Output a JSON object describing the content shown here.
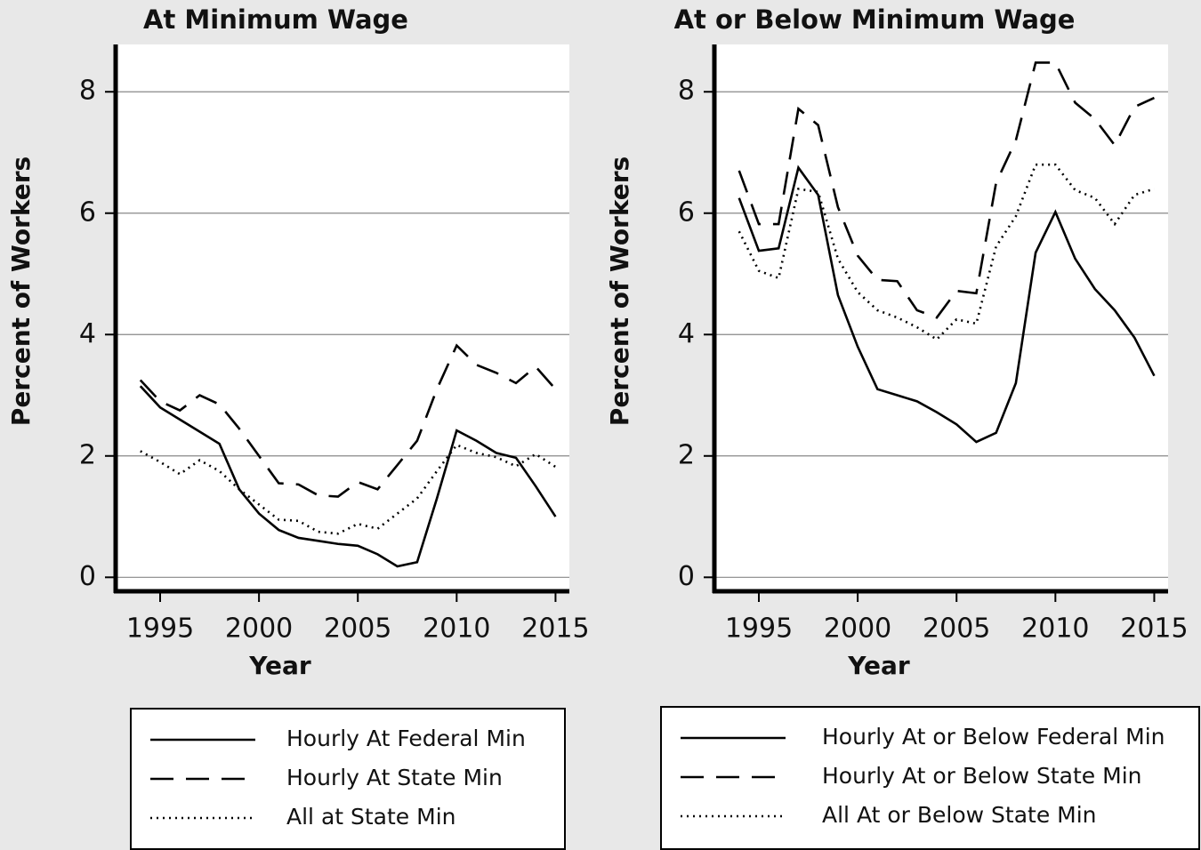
{
  "chart_data": [
    {
      "type": "line",
      "title": "At Minimum Wage",
      "x_label": "Year",
      "y_label": "Percent of Workers",
      "x": [
        1994,
        1995,
        1996,
        1997,
        1998,
        1999,
        2000,
        2001,
        2002,
        2003,
        2004,
        2005,
        2006,
        2007,
        2008,
        2009,
        2010,
        2011,
        2012,
        2013,
        2014,
        2015
      ],
      "xlim": [
        1992.75,
        2015.7
      ],
      "xticks": [
        1995,
        2000,
        2005,
        2010,
        2015
      ],
      "ylim": [
        -0.23,
        8.78
      ],
      "yticks": [
        0,
        2,
        4,
        6,
        8
      ],
      "grid": true,
      "series": [
        {
          "name": "Hourly At Federal Min",
          "color": "#000000",
          "dash": "solid",
          "values": [
            3.15,
            2.8,
            2.6,
            2.4,
            2.2,
            1.45,
            1.05,
            0.78,
            0.65,
            0.6,
            0.55,
            0.52,
            0.38,
            0.18,
            0.25,
            1.3,
            2.42,
            2.25,
            2.05,
            1.97,
            1.5,
            1.0
          ]
        },
        {
          "name": "Hourly At State Min",
          "color": "#000000",
          "dash": "dashed",
          "values": [
            3.25,
            2.9,
            2.75,
            3.0,
            2.85,
            2.45,
            2.0,
            1.55,
            1.53,
            1.35,
            1.33,
            1.57,
            1.45,
            1.85,
            2.25,
            3.1,
            3.82,
            3.5,
            3.37,
            3.2,
            3.47,
            3.1
          ]
        },
        {
          "name": "All at State Min",
          "color": "#000000",
          "dash": "dotted",
          "values": [
            2.08,
            1.9,
            1.7,
            1.93,
            1.75,
            1.45,
            1.2,
            0.95,
            0.93,
            0.75,
            0.72,
            0.88,
            0.8,
            1.05,
            1.3,
            1.75,
            2.18,
            2.05,
            1.98,
            1.83,
            2.03,
            1.82
          ]
        }
      ]
    },
    {
      "type": "line",
      "title": "At or Below Minimum Wage",
      "x_label": "Year",
      "y_label": "Percent of Workers",
      "x": [
        1994,
        1995,
        1996,
        1997,
        1998,
        1999,
        2000,
        2001,
        2002,
        2003,
        2004,
        2005,
        2006,
        2007,
        2008,
        2009,
        2010,
        2011,
        2012,
        2013,
        2014,
        2015
      ],
      "xlim": [
        1992.75,
        2015.7
      ],
      "xticks": [
        1995,
        2000,
        2005,
        2010,
        2015
      ],
      "ylim": [
        -0.23,
        8.78
      ],
      "yticks": [
        0,
        2,
        4,
        6,
        8
      ],
      "grid": true,
      "series": [
        {
          "name": "Hourly At or Below Federal Min",
          "color": "#000000",
          "dash": "solid",
          "values": [
            6.25,
            5.38,
            5.42,
            6.75,
            6.3,
            4.65,
            3.8,
            3.1,
            3.0,
            2.9,
            2.72,
            2.52,
            2.23,
            2.38,
            3.2,
            5.35,
            6.02,
            5.25,
            4.75,
            4.4,
            3.95,
            3.32
          ]
        },
        {
          "name": "Hourly At or Below State Min",
          "color": "#000000",
          "dash": "dashed",
          "values": [
            6.7,
            5.82,
            5.82,
            7.72,
            7.45,
            6.1,
            5.3,
            4.9,
            4.88,
            4.4,
            4.28,
            4.72,
            4.68,
            6.5,
            7.2,
            8.48,
            8.48,
            7.82,
            7.55,
            7.12,
            7.75,
            7.9
          ]
        },
        {
          "name": "All At or Below State Min",
          "color": "#000000",
          "dash": "dotted",
          "values": [
            5.7,
            5.05,
            4.93,
            6.4,
            6.35,
            5.25,
            4.7,
            4.4,
            4.28,
            4.12,
            3.92,
            4.25,
            4.18,
            5.45,
            5.95,
            6.8,
            6.8,
            6.38,
            6.25,
            5.82,
            6.3,
            6.4
          ]
        }
      ]
    }
  ]
}
